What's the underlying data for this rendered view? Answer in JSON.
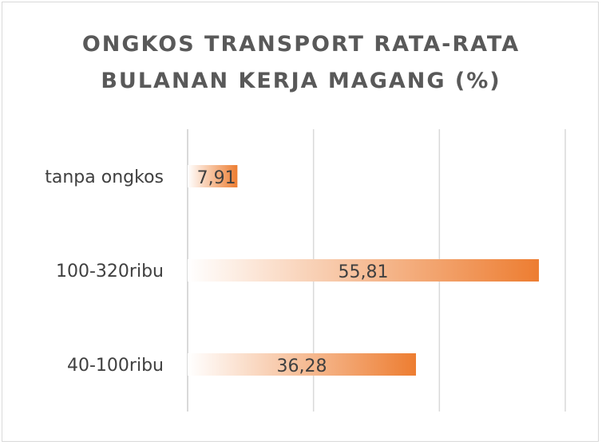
{
  "chart_data": {
    "type": "bar",
    "orientation": "horizontal",
    "title_lines": [
      "ONGKOS TRANSPORT RATA-RATA",
      "BULANAN KERJA MAGANG (%)"
    ],
    "categories": [
      "tanpa ongkos",
      "100-320ribu",
      "40-100ribu"
    ],
    "values": [
      7.91,
      55.81,
      36.28
    ],
    "value_labels": [
      "7,91",
      "55,81",
      "36,28"
    ],
    "xlim": [
      0,
      60
    ],
    "x_gridlines": [
      0,
      20,
      40,
      60
    ],
    "grid": true,
    "legend": "none",
    "colors": {
      "bar_start": "#ffffff",
      "bar_end": "#ed7d31",
      "grid": "#d9d9d9",
      "text": "#404040",
      "title": "#595959"
    }
  }
}
